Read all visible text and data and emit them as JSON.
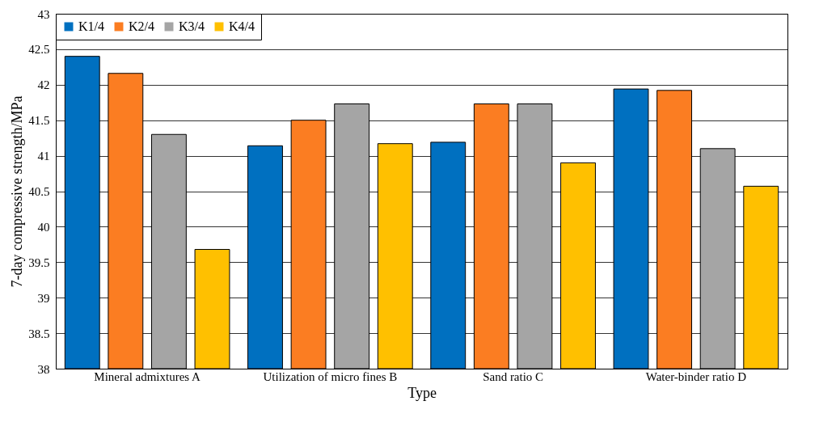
{
  "chart_data": {
    "type": "bar",
    "xlabel": "Type",
    "ylabel": "7-day compressive strength/MPa",
    "categories": [
      "Mineral admixtures A",
      "Utilization of micro fines B",
      "Sand ratio C",
      "Water-binder ratio D"
    ],
    "series": [
      {
        "name": "K1/4",
        "color": "#0070c0",
        "values": [
          42.4,
          41.14,
          41.19,
          41.94
        ]
      },
      {
        "name": "K2/4",
        "color": "#fb7d22",
        "values": [
          42.16,
          41.5,
          41.73,
          41.92
        ]
      },
      {
        "name": "K3/4",
        "color": "#a5a5a5",
        "values": [
          41.3,
          41.73,
          41.73,
          41.1
        ]
      },
      {
        "name": "K4/4",
        "color": "#ffc000",
        "values": [
          39.68,
          41.17,
          40.9,
          40.57
        ]
      }
    ],
    "ylim": [
      38,
      43
    ],
    "yticks": [
      38,
      38.5,
      39,
      39.5,
      40,
      40.5,
      41,
      41.5,
      42,
      42.5,
      43
    ],
    "grid": "y",
    "legend": "top left"
  }
}
